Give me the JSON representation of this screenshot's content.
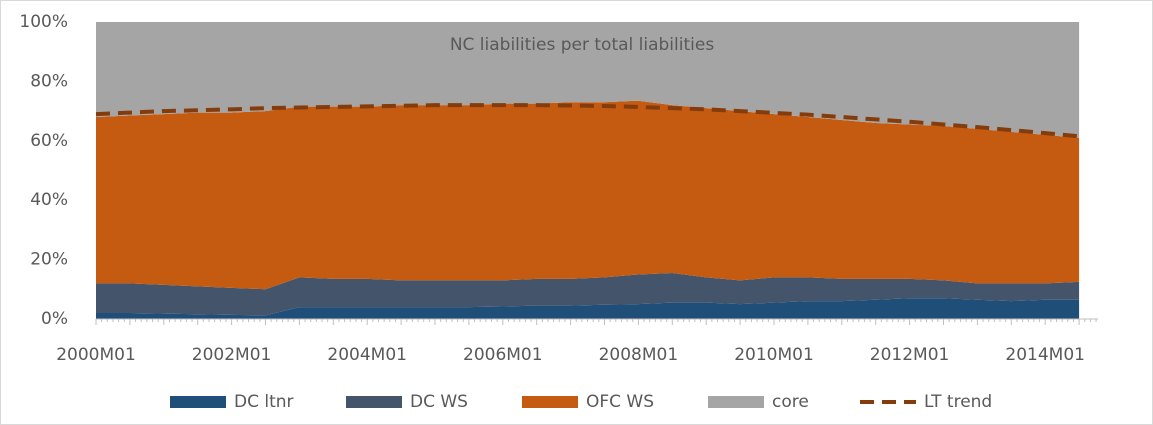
{
  "chart_data": {
    "type": "stacked-area",
    "title": "NC liabilities per total liabilities",
    "categories": [
      "2000M01",
      null,
      null,
      null,
      "2002M01",
      null,
      null,
      null,
      "2004M01",
      null,
      null,
      null,
      "2006M01",
      null,
      null,
      null,
      "2008M01",
      null,
      null,
      null,
      "2010M01",
      null,
      null,
      null,
      "2012M01",
      null,
      null,
      null,
      "2014M01",
      null
    ],
    "series": [
      {
        "name": "DC ltnr",
        "color": "#1f4e79",
        "values": [
          2,
          2,
          1.8,
          1.6,
          1.4,
          1.2,
          4,
          4,
          4,
          4,
          4,
          4,
          4.2,
          4.5,
          4.5,
          4.8,
          5,
          5.5,
          5.5,
          5,
          5.5,
          6,
          6,
          6.5,
          7,
          7,
          6.5,
          6,
          6.5,
          6.5
        ]
      },
      {
        "name": "DC WS",
        "color": "#44546a",
        "values": [
          10,
          10,
          9.7,
          9.4,
          9.1,
          8.8,
          10,
          9.5,
          9.5,
          9,
          9,
          9,
          8.8,
          9,
          9,
          9.2,
          10,
          10,
          8.5,
          8,
          8.5,
          8,
          7.5,
          7,
          6.5,
          6,
          5.5,
          6,
          5.5,
          6
        ]
      },
      {
        "name": "OFC WS",
        "color": "#c55a11",
        "values": [
          56,
          56.5,
          57.5,
          58.5,
          59,
          60,
          57.5,
          58,
          58,
          59,
          59,
          59,
          59.5,
          59,
          59.5,
          59,
          58.5,
          56.5,
          57,
          57,
          55,
          54,
          53.5,
          52.5,
          52,
          52,
          52,
          51,
          50,
          48.5
        ]
      },
      {
        "name": "core",
        "color": "#a5a5a5",
        "values": [
          32,
          31.5,
          31,
          30.5,
          30.5,
          30,
          28.5,
          28.5,
          28.5,
          28,
          28,
          28,
          27.5,
          27.5,
          27,
          27,
          26.5,
          28,
          29,
          30,
          31,
          32,
          33,
          34,
          34.5,
          35,
          36,
          37,
          38,
          39
        ]
      }
    ],
    "trend": {
      "name": "LT trend",
      "color": "#843c0c",
      "values": [
        69,
        69.5,
        70,
        70.3,
        70.6,
        71,
        71.2,
        71.4,
        71.6,
        71.8,
        72,
        72,
        72,
        72,
        71.9,
        71.7,
        71.4,
        71,
        70.6,
        70,
        69.4,
        68.8,
        68,
        67.2,
        66.4,
        65.5,
        64.6,
        63.6,
        62.6,
        61.5
      ]
    },
    "ylim": [
      0,
      100
    ],
    "yticks": [
      {
        "value": 0,
        "label": "0%"
      },
      {
        "value": 20,
        "label": "20%"
      },
      {
        "value": 40,
        "label": "40%"
      },
      {
        "value": 60,
        "label": "60%"
      },
      {
        "value": 80,
        "label": "80%"
      },
      {
        "value": 100,
        "label": "100%"
      }
    ],
    "legend": "bottom"
  }
}
